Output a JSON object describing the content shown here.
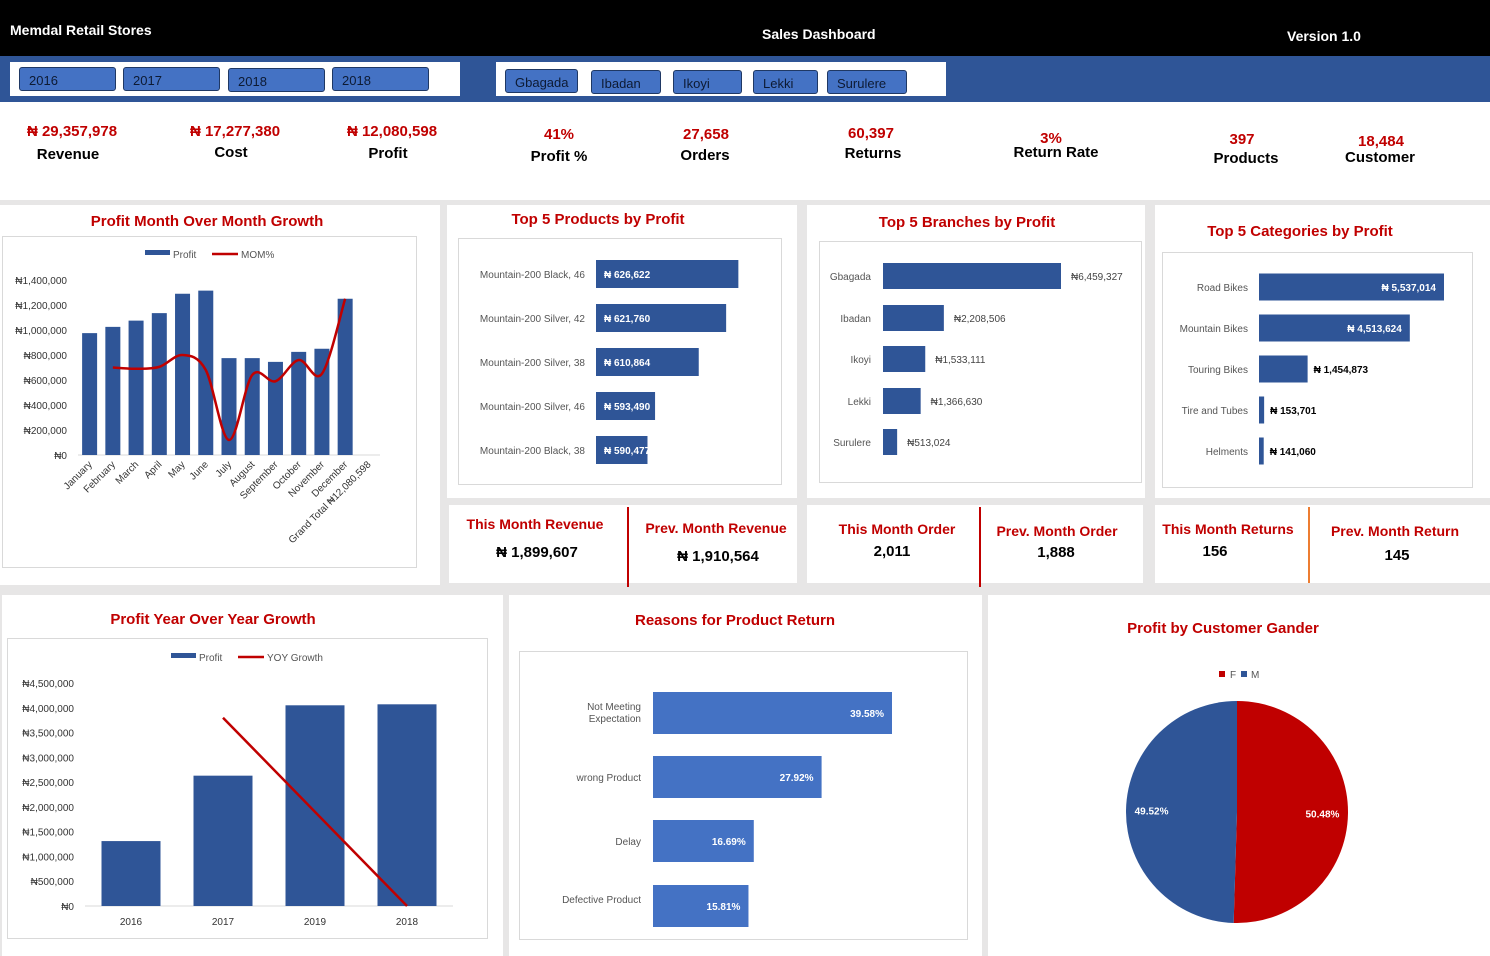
{
  "header": {
    "title": "Memdal Retail Stores",
    "center_title": "Sales Dashboard",
    "version": "Version 1.0"
  },
  "year_slicer": [
    {
      "label": "2016"
    },
    {
      "label": "2017"
    },
    {
      "label": "2018"
    },
    {
      "label": "2018"
    }
  ],
  "branch_slicer": [
    {
      "label": "Gbagada"
    },
    {
      "label": "Ibadan"
    },
    {
      "label": "Ikoyi"
    },
    {
      "label": "Lekki"
    },
    {
      "label": "Surulere"
    }
  ],
  "kpis": [
    {
      "value": "₦ 29,357,978",
      "label": "Revenue"
    },
    {
      "value": "₦ 17,277,380",
      "label": "Cost"
    },
    {
      "value": "₦ 12,080,598",
      "label": "Profit"
    },
    {
      "value": "41%",
      "label": "Profit %"
    },
    {
      "value": "27,658",
      "label": "Orders"
    },
    {
      "value": "60,397",
      "label": "Returns"
    },
    {
      "value": "3%",
      "label": "Return Rate"
    },
    {
      "value": "397",
      "label": "Products"
    },
    {
      "value": "18,484",
      "label": "Customer"
    }
  ],
  "month_kpis": [
    {
      "title": "This Month Revenue",
      "value": "₦ 1,899,607"
    },
    {
      "title": "Prev. Month Revenue",
      "value": "₦ 1,910,564"
    },
    {
      "title": "This Month Order",
      "value": "2,011"
    },
    {
      "title": "Prev. Month Order",
      "value": "1,888"
    },
    {
      "title": "This Month Returns",
      "value": "156"
    },
    {
      "title": "Prev. Month Return",
      "value": "145"
    }
  ],
  "colors": {
    "header": "#000000",
    "band": "#2f5597",
    "bar": "#2f5597",
    "bar_light": "#4472c4",
    "line": "#c00000",
    "title": "#c00000",
    "divider_red": "#c00000",
    "divider_orange": "#ed7d31"
  },
  "chart_data": [
    {
      "id": "mom",
      "type": "bar+line",
      "title": "Profit Month Over Month Growth",
      "categories": [
        "January",
        "February",
        "March",
        "April",
        "May",
        "June",
        "July",
        "August",
        "September",
        "October",
        "November",
        "December",
        "Grand Total ₦12,080,598"
      ],
      "series": [
        {
          "name": "Profit",
          "type": "bar",
          "values": [
            975000,
            1025000,
            1075000,
            1135000,
            1290000,
            1315000,
            775000,
            775000,
            745000,
            825000,
            850000,
            1250000,
            null
          ]
        },
        {
          "name": "MOM%",
          "type": "line",
          "smooth": true,
          "values": [
            null,
            700000,
            690000,
            705000,
            800000,
            680000,
            120000,
            640000,
            590000,
            760000,
            650000,
            1250000,
            null
          ]
        }
      ],
      "yticks": [
        "₦0",
        "₦200,000",
        "₦400,000",
        "₦600,000",
        "₦800,000",
        "₦1,000,000",
        "₦1,200,000",
        "₦1,400,000"
      ],
      "ylim": [
        0,
        1400000
      ],
      "legend": "top"
    },
    {
      "id": "products",
      "type": "bar-horizontal",
      "title": "Top 5 Products by Profit",
      "categories": [
        "Mountain-200 Black, 46",
        "Mountain-200 Silver, 42",
        "Mountain-200 Silver, 38",
        "Mountain-200 Silver, 46",
        "Mountain-200 Black, 38"
      ],
      "values": [
        626622,
        621760,
        610864,
        593490,
        590477
      ],
      "labels": [
        "₦ 626,622",
        "₦ 621,760",
        "₦ 610,864",
        "₦ 593,490",
        "₦ 590,477"
      ],
      "xlim": [
        570000,
        640000
      ]
    },
    {
      "id": "branches",
      "type": "bar-horizontal",
      "title": "Top 5 Branches by Profit",
      "categories": [
        "Gbagada",
        "Ibadan",
        "Ikoyi",
        "Lekki",
        "Surulere"
      ],
      "values": [
        6459327,
        2208506,
        1533111,
        1366630,
        513024
      ],
      "labels": [
        "₦6,459,327",
        "₦2,208,506",
        "₦1,533,111",
        "₦1,366,630",
        "₦513,024"
      ],
      "xlim": [
        0,
        6459327
      ]
    },
    {
      "id": "categories",
      "type": "bar-horizontal",
      "title": "Top 5 Categories by Profit",
      "categories": [
        "Road Bikes",
        "Mountain Bikes",
        "Touring Bikes",
        "Tire and Tubes",
        "Helments"
      ],
      "values": [
        5537014,
        4513624,
        1454873,
        153701,
        141060
      ],
      "labels": [
        "₦ 5,537,014",
        "₦ 4,513,624",
        "₦ 1,454,873",
        "₦ 153,701",
        "₦ 141,060"
      ],
      "xlim": [
        0,
        5537014
      ]
    },
    {
      "id": "yoy",
      "type": "bar+line",
      "title": "Profit Year Over Year Growth",
      "categories": [
        "2016",
        "2017",
        "2019",
        "2018"
      ],
      "series": [
        {
          "name": "Profit",
          "type": "bar",
          "values": [
            1310000,
            2630000,
            4050000,
            4070000
          ]
        },
        {
          "name": "YOY Growth",
          "type": "line",
          "values": [
            null,
            3800000,
            1900000,
            0
          ]
        }
      ],
      "yticks": [
        "₦0",
        "₦500,000",
        "₦1,000,000",
        "₦1,500,000",
        "₦2,000,000",
        "₦2,500,000",
        "₦3,000,000",
        "₦3,500,000",
        "₦4,000,000",
        "₦4,500,000"
      ],
      "ylim": [
        0,
        4500000
      ],
      "legend": "top"
    },
    {
      "id": "reasons",
      "type": "bar-horizontal",
      "title": "Reasons for Product Return",
      "categories": [
        "Not Meeting Expectation",
        "wrong Product",
        "Delay",
        "Defective Product"
      ],
      "values": [
        39.58,
        27.92,
        16.69,
        15.81
      ],
      "labels": [
        "39.58%",
        "27.92%",
        "16.69%",
        "15.81%"
      ],
      "xlim": [
        0,
        39.58
      ]
    },
    {
      "id": "gender",
      "type": "pie",
      "title": "Profit by Customer Gander",
      "categories": [
        "F",
        "M"
      ],
      "values": [
        50.48,
        49.52
      ],
      "labels": [
        "50.48%",
        "49.52%"
      ],
      "colors": [
        "#c00000",
        "#2f5597"
      ],
      "legend": "top"
    }
  ]
}
